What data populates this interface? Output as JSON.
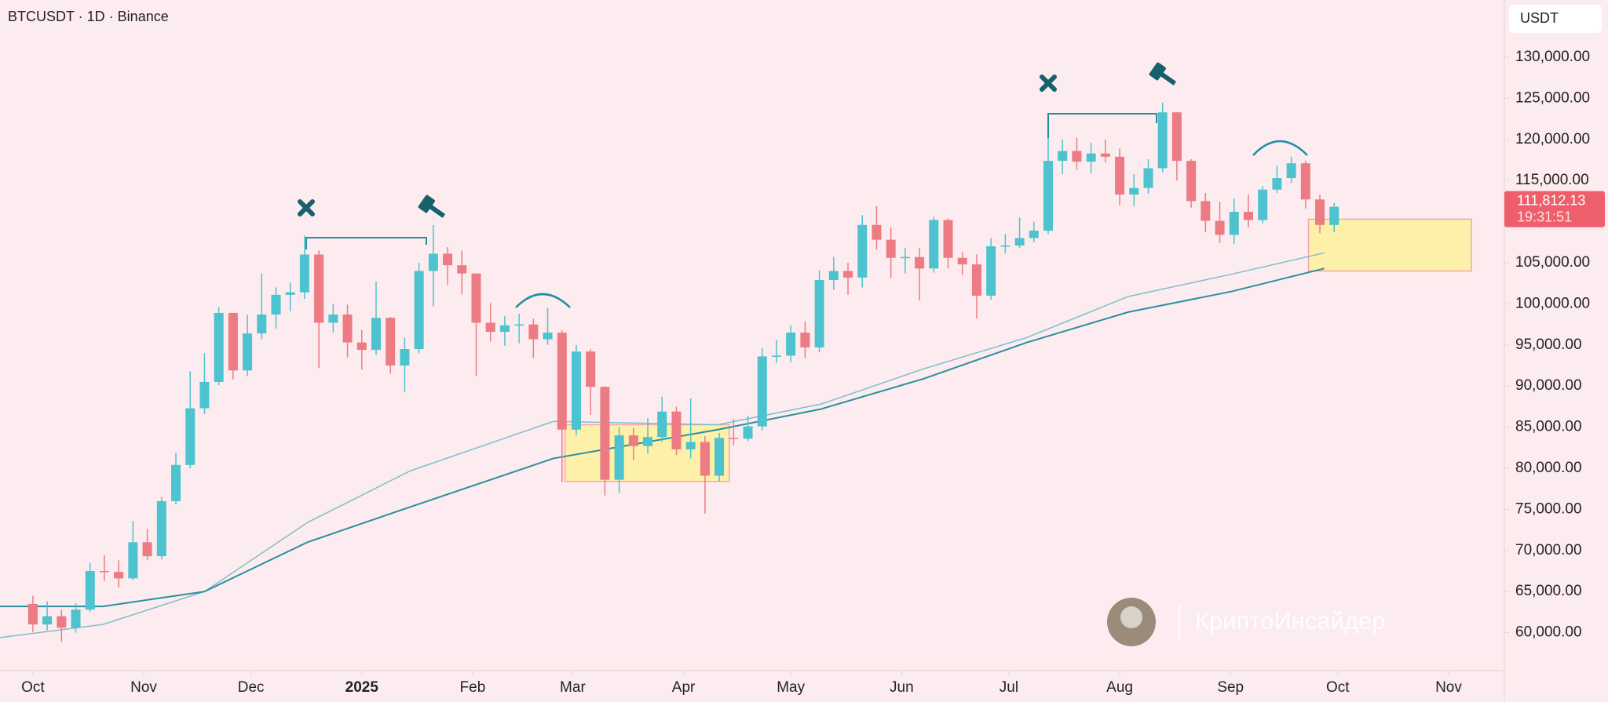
{
  "chart_data": {
    "type": "candlestick",
    "title": "BTCUSDT · 1D · Binance",
    "currency": "USDT",
    "watermark": "КриптоИнсайдер",
    "up_color": "#4cc3ce",
    "down_color": "#ec7b84",
    "categories": [
      null,
      null,
      null,
      null,
      null,
      null,
      null,
      null,
      null,
      null,
      null,
      null,
      null,
      null,
      null,
      null,
      null,
      null,
      null,
      null,
      null,
      null,
      null,
      null,
      null,
      null,
      null,
      null,
      null,
      null,
      null,
      null,
      null,
      null,
      null,
      null,
      null,
      null,
      null,
      null,
      null,
      null,
      null,
      null,
      null,
      null,
      null,
      null,
      null,
      null,
      null,
      null,
      null,
      null,
      null,
      null,
      null,
      null,
      null,
      null,
      null,
      null,
      null,
      null,
      null,
      null,
      null,
      null,
      null,
      null,
      null,
      null,
      null,
      null,
      null,
      null,
      null,
      null,
      null,
      null,
      null,
      null,
      null,
      null,
      null,
      null,
      null,
      null,
      null,
      null,
      null,
      null
    ],
    "open": [
      63500,
      61000,
      62000,
      60600,
      62800,
      67500,
      67400,
      66600,
      71000,
      69300,
      76000,
      80400,
      87300,
      90500,
      98900,
      91900,
      96400,
      98700,
      101100,
      101400,
      106000,
      97700,
      98700,
      95300,
      94400,
      98300,
      92500,
      94500,
      104000,
      106100,
      104700,
      103700,
      97700,
      96600,
      97400,
      97500,
      95700,
      96500,
      84700,
      94200,
      89900,
      78600,
      84000,
      82700,
      83800,
      86900,
      82300,
      83200,
      79100,
      83700,
      83600,
      85100,
      93600,
      93700,
      96500,
      94700,
      102900,
      104000,
      103200,
      109600,
      107800,
      105600,
      105700,
      104300,
      110200,
      105600,
      104800,
      101000,
      107000,
      107100,
      108000,
      108900,
      117400,
      118600,
      117300,
      118300,
      117900,
      113300,
      114100,
      116500,
      123300,
      117400,
      112500,
      110100,
      108400,
      111200,
      110200,
      113900,
      115300,
      117100,
      112700,
      109600
    ],
    "high": [
      64500,
      63800,
      62800,
      63600,
      68500,
      69400,
      68800,
      73600,
      72600,
      76500,
      81900,
      91800,
      94000,
      99600,
      98900,
      98700,
      103700,
      102000,
      102600,
      108300,
      106500,
      100000,
      99900,
      96800,
      102700,
      98400,
      95900,
      105000,
      109600,
      106900,
      106500,
      103700,
      100100,
      98500,
      98800,
      98200,
      99500,
      96800,
      95000,
      94500,
      90000,
      85000,
      84900,
      86100,
      88700,
      87500,
      88500,
      83900,
      84300,
      86000,
      86400,
      94600,
      95600,
      97400,
      97900,
      104100,
      105700,
      105000,
      110800,
      111900,
      109300,
      106800,
      106800,
      110600,
      110400,
      106300,
      106000,
      108000,
      108500,
      110500,
      110000,
      123200,
      120000,
      120200,
      119600,
      120000,
      118900,
      115800,
      117600,
      124500,
      123300,
      117600,
      113500,
      112400,
      112800,
      113300,
      114300,
      116800,
      117900,
      117400,
      113300,
      112300
    ],
    "low": [
      60100,
      60300,
      58900,
      60000,
      62500,
      66300,
      65500,
      66400,
      68800,
      68900,
      75600,
      80000,
      86600,
      90100,
      90800,
      91200,
      95700,
      97000,
      99100,
      100600,
      92200,
      96500,
      93500,
      92000,
      93800,
      91500,
      89300,
      94000,
      99700,
      102300,
      101200,
      91200,
      95400,
      94900,
      95200,
      93400,
      95000,
      78300,
      84000,
      86500,
      76700,
      77000,
      81000,
      81800,
      83200,
      81600,
      81200,
      74500,
      78400,
      82800,
      83300,
      84600,
      92800,
      92900,
      93400,
      94100,
      101700,
      101100,
      102000,
      106600,
      103100,
      103700,
      100400,
      103800,
      104300,
      103500,
      98200,
      100500,
      106100,
      106800,
      107500,
      108500,
      115800,
      116300,
      115900,
      117200,
      112000,
      111900,
      113400,
      116000,
      115000,
      111700,
      108700,
      107400,
      107300,
      109300,
      109800,
      113500,
      114700,
      111600,
      108600,
      108700
    ],
    "close": [
      61000,
      62000,
      60600,
      62800,
      67500,
      67400,
      66600,
      71000,
      69300,
      76000,
      80400,
      87300,
      90500,
      98900,
      91900,
      96400,
      98700,
      101100,
      101400,
      106000,
      97700,
      98700,
      95300,
      94400,
      98300,
      92500,
      94500,
      104000,
      106100,
      104700,
      103700,
      97700,
      96600,
      97400,
      97500,
      95700,
      96500,
      84700,
      94200,
      89900,
      78600,
      84000,
      82700,
      83800,
      86900,
      82300,
      83200,
      79100,
      83700,
      83600,
      85100,
      93600,
      93700,
      96500,
      94700,
      102900,
      104000,
      103200,
      109600,
      107800,
      105600,
      105700,
      104300,
      110200,
      105600,
      104800,
      101000,
      107000,
      107100,
      108000,
      108900,
      117400,
      118600,
      117300,
      118300,
      117900,
      113300,
      114100,
      116500,
      123300,
      117400,
      112500,
      110100,
      108400,
      111200,
      110200,
      113900,
      115300,
      117100,
      112700,
      109600,
      111812.13
    ],
    "ma_lines": [
      {
        "color": "#7dbecb",
        "x": [
          -2.3,
          4.9,
          12.0,
          19.2,
          26.4,
          36.4,
          47.9,
          55.1,
          62.3,
          69.5,
          76.6,
          83.8,
          90.3
        ],
        "values": [
          59400,
          61000,
          65000,
          73400,
          79700,
          85700,
          85300,
          87800,
          92100,
          95900,
          100900,
          103600,
          106200
        ]
      },
      {
        "color": "#2a8fa0",
        "x": [
          -2.3,
          4.9,
          12.0,
          19.2,
          26.4,
          36.4,
          47.9,
          55.1,
          62.3,
          69.5,
          76.6,
          83.8,
          90.3
        ],
        "values": [
          63200,
          63200,
          65000,
          71000,
          75300,
          81200,
          84700,
          87200,
          90900,
          95300,
          99000,
          101500,
          104300
        ]
      }
    ],
    "zones": [
      {
        "x": [
          37.2,
          48.7
        ],
        "y": [
          78400,
          85300
        ]
      },
      {
        "x": [
          89.2,
          100.6
        ],
        "y": [
          104000,
          110300
        ]
      }
    ],
    "last_price": {
      "value": 111812.13,
      "label": "111,812.13"
    },
    "countdown": "19:31:51",
    "xlim": [
      -2.3,
      102.9
    ],
    "ylim": [
      55382,
      136966
    ],
    "xticks": [
      {
        "value": 0,
        "label": "Oct"
      },
      {
        "value": 7.75,
        "label": "Nov"
      },
      {
        "value": 15.25,
        "label": "Dec"
      },
      {
        "value": 23,
        "label": "2025",
        "bold": true
      },
      {
        "value": 30.75,
        "label": "Feb"
      },
      {
        "value": 37.75,
        "label": "Mar"
      },
      {
        "value": 45.5,
        "label": "Apr"
      },
      {
        "value": 53,
        "label": "May"
      },
      {
        "value": 60.75,
        "label": "Jun"
      },
      {
        "value": 68.25,
        "label": "Jul"
      },
      {
        "value": 76,
        "label": "Aug"
      },
      {
        "value": 83.75,
        "label": "Sep"
      },
      {
        "value": 91.25,
        "label": "Oct"
      },
      {
        "value": 99,
        "label": "Nov"
      }
    ],
    "yticks": [
      {
        "value": 60000,
        "label": "60,000.00"
      },
      {
        "value": 65000,
        "label": "65,000.00"
      },
      {
        "value": 70000,
        "label": "70,000.00"
      },
      {
        "value": 75000,
        "label": "75,000.00"
      },
      {
        "value": 80000,
        "label": "80,000.00"
      },
      {
        "value": 85000,
        "label": "85,000.00"
      },
      {
        "value": 90000,
        "label": "90,000.00"
      },
      {
        "value": 95000,
        "label": "95,000.00"
      },
      {
        "value": 100000,
        "label": "100,000.00"
      },
      {
        "value": 105000,
        "label": "105,000.00"
      },
      {
        "value": 110000,
        "label": "110,000.00"
      },
      {
        "value": 115000,
        "label": "115,000.00"
      },
      {
        "value": 120000,
        "label": "120,000.00"
      },
      {
        "value": 125000,
        "label": "125,000.00"
      },
      {
        "value": 130000,
        "label": "130,000.00"
      }
    ]
  }
}
